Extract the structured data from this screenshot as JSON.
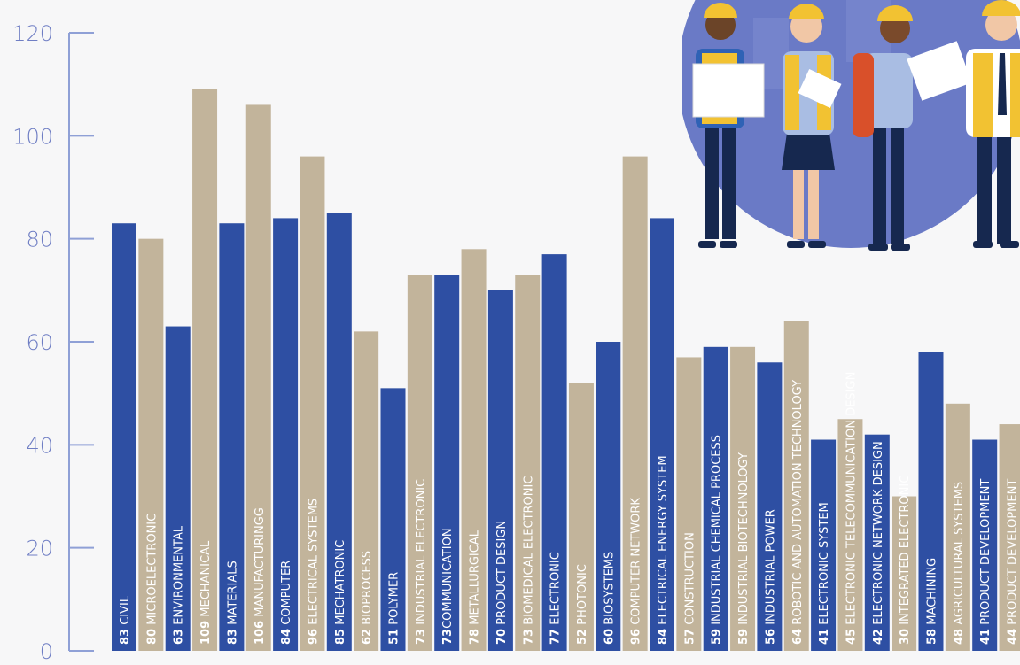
{
  "chart_data": {
    "type": "bar",
    "title": "",
    "xlabel": "",
    "ylabel": "",
    "ylim": [
      0,
      120
    ],
    "yticks": [
      0,
      20,
      40,
      60,
      80,
      100,
      120
    ],
    "colors": {
      "blue": "#2e4fa3",
      "beige": "#c2b49b",
      "axis": "#8fa0d6",
      "ticklabel": "#6f7ec4"
    },
    "bars": [
      {
        "label": "CIVIL",
        "value": 83,
        "color": "blue"
      },
      {
        "label": "MICROELECTRONIC",
        "value": 80,
        "color": "beige"
      },
      {
        "label": "ENVIRONMENTAL",
        "value": 63,
        "color": "blue"
      },
      {
        "label": "MECHANICAL",
        "value": 109,
        "color": "beige"
      },
      {
        "label": "MATERIALS",
        "value": 83,
        "color": "blue"
      },
      {
        "label": "MANUFACTURINGG",
        "value": 106,
        "color": "beige"
      },
      {
        "label": "COMPUTER",
        "value": 84,
        "color": "blue"
      },
      {
        "label": "ELECTRICAL SYSTEMS",
        "value": 96,
        "color": "beige"
      },
      {
        "label": "MECHATRONIC",
        "value": 85,
        "color": "blue"
      },
      {
        "label": " BIOPROCESS",
        "value": 62,
        "color": "beige"
      },
      {
        "label": "POLYMER",
        "value": 51,
        "color": "blue"
      },
      {
        "label": "INDUSTRIAL ELECTRONIC",
        "value": 73,
        "color": "beige"
      },
      {
        "label": "COMMUNICATION",
        "value": 73,
        "color": "blue",
        "nospace": true
      },
      {
        "label": "METALLURGICAL",
        "value": 78,
        "color": "beige"
      },
      {
        "label": "PRODUCT DESIGN",
        "value": 70,
        "color": "blue"
      },
      {
        "label": "BIOMEDICAL ELECTRONIC",
        "value": 73,
        "color": "beige"
      },
      {
        "label": "ELECTRONIC",
        "value": 77,
        "color": "blue"
      },
      {
        "label": "PHOTONIC",
        "value": 52,
        "color": "beige"
      },
      {
        "label": "BIOSYSTEMS",
        "value": 60,
        "color": "blue"
      },
      {
        "label": "COMPUTER NETWORK",
        "value": 96,
        "color": "beige"
      },
      {
        "label": "ELECTRICAL ENERGY SYSTEM",
        "value": 84,
        "color": "blue"
      },
      {
        "label": "CONSTRUCTION",
        "value": 57,
        "color": "beige"
      },
      {
        "label": "INDUSTRIAL CHEMICAL PROCESS",
        "value": 59,
        "color": "blue"
      },
      {
        "label": "INDUSTRIAL BIOTECHNOLOGY",
        "value": 59,
        "color": "beige"
      },
      {
        "label": "INDUSTRIAL POWER",
        "value": 56,
        "color": "blue"
      },
      {
        "label": "ROBOTIC AND AUTOMATION TECHNOLOGY",
        "value": 64,
        "color": "beige"
      },
      {
        "label": "ELECTRONIC SYSTEM",
        "value": 41,
        "color": "blue"
      },
      {
        "label": "ELECTRONIC TELECOMMUNICATION DESIGN",
        "value": 45,
        "color": "beige"
      },
      {
        "label": "ELECTRONIC NETWORK DESIGN",
        "value": 42,
        "color": "blue"
      },
      {
        "label": "INTEGRATED ELECTRONIC",
        "value": 30,
        "color": "beige"
      },
      {
        "label": "MACHINING",
        "value": 58,
        "color": "blue"
      },
      {
        "label": "AGRICULTURAL SYSTEMS",
        "value": 48,
        "color": "beige"
      },
      {
        "label": "PRODUCT DEVELOPMENT",
        "value": 41,
        "color": "blue"
      },
      {
        "label": "PRODUCT DEVELOPMENT",
        "value": 44,
        "color": "beige"
      }
    ]
  }
}
